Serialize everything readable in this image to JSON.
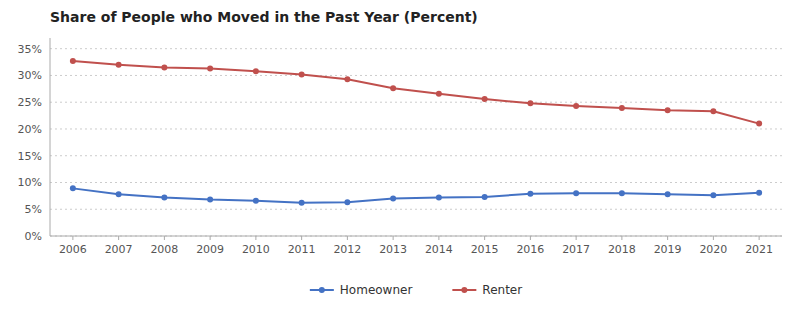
{
  "chart_data": {
    "type": "line",
    "title": "Share of People who Moved in the Past Year (Percent)",
    "x": [
      2006,
      2007,
      2008,
      2009,
      2010,
      2011,
      2012,
      2013,
      2014,
      2015,
      2016,
      2017,
      2018,
      2019,
      2020,
      2021
    ],
    "xlim": [
      2005.5,
      2021.5
    ],
    "xticks": [
      2006,
      2007,
      2008,
      2009,
      2010,
      2011,
      2012,
      2013,
      2014,
      2015,
      2016,
      2017,
      2018,
      2019,
      2020,
      2021
    ],
    "ylim": [
      0,
      0.37
    ],
    "yticks": [
      {
        "value": 0.0,
        "label": "0%"
      },
      {
        "value": 0.05,
        "label": "5%"
      },
      {
        "value": 0.1,
        "label": "10%"
      },
      {
        "value": 0.15,
        "label": "15%"
      },
      {
        "value": 0.2,
        "label": "20%"
      },
      {
        "value": 0.25,
        "label": "25%"
      },
      {
        "value": 0.3,
        "label": "30%"
      },
      {
        "value": 0.35,
        "label": "35%"
      }
    ],
    "grid": true,
    "legend": "bottom",
    "marker": "o",
    "series": [
      {
        "name": "Homeowner",
        "color": "#4472C4",
        "values": [
          0.089,
          0.078,
          0.072,
          0.068,
          0.066,
          0.062,
          0.063,
          0.07,
          0.072,
          0.073,
          0.079,
          0.08,
          0.08,
          0.078,
          0.076,
          0.081
        ]
      },
      {
        "name": "Renter",
        "color": "#C0504D",
        "values": [
          0.327,
          0.32,
          0.315,
          0.313,
          0.308,
          0.302,
          0.293,
          0.276,
          0.266,
          0.256,
          0.248,
          0.243,
          0.239,
          0.235,
          0.233,
          0.21
        ]
      }
    ]
  }
}
